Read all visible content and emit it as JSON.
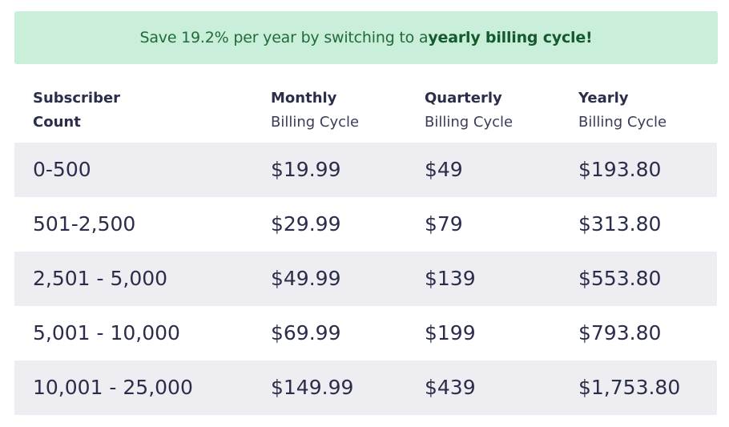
{
  "banner": {
    "text_before": "Save 19.2% per year by switching to a ",
    "text_bold": "yearly billing cycle!"
  },
  "headers": [
    {
      "line1": "Subscriber",
      "line2": "Count"
    },
    {
      "line1": "Monthly",
      "line2": "Billing Cycle"
    },
    {
      "line1": "Quarterly",
      "line2": "Billing Cycle"
    },
    {
      "line1": "Yearly",
      "line2": "Billing Cycle"
    }
  ],
  "rows": [
    {
      "count": "0-500",
      "monthly": "$19.99",
      "quarterly": "$49",
      "yearly": "$193.80"
    },
    {
      "count": "501-2,500",
      "monthly": "$29.99",
      "quarterly": "$79",
      "yearly": "$313.80"
    },
    {
      "count": "2,501 - 5,000",
      "monthly": "$49.99",
      "quarterly": "$139",
      "yearly": "$553.80"
    },
    {
      "count": "5,001 - 10,000",
      "monthly": "$69.99",
      "quarterly": "$199",
      "yearly": "$793.80"
    },
    {
      "count": "10,001 - 25,000",
      "monthly": "$149.99",
      "quarterly": "$439",
      "yearly": "$1,753.80"
    }
  ],
  "colors": {
    "banner_bg": "#c9eed9",
    "banner_text": "#1f6b3a",
    "row_shade": "#ededf2",
    "text": "#2b2e4a"
  }
}
